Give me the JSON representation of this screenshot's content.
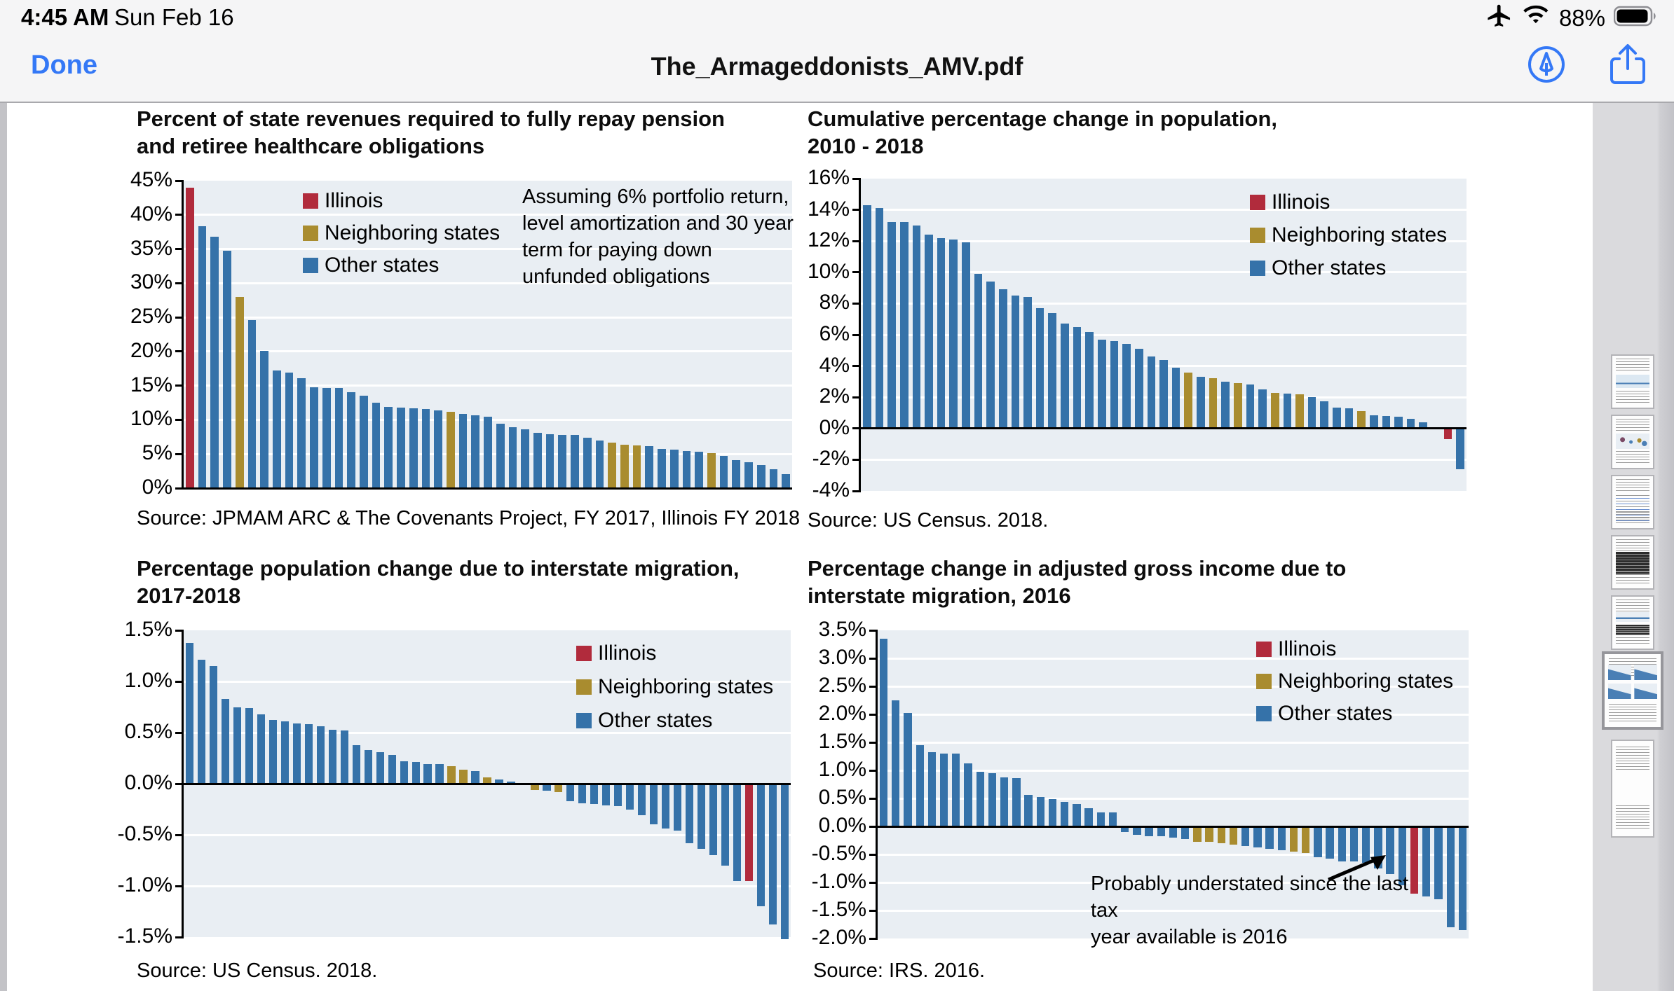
{
  "status": {
    "time": "4:45 AM",
    "date": "Sun Feb 16",
    "battery_percent": "88%",
    "icons": [
      "airplane-mode",
      "wifi",
      "battery"
    ]
  },
  "toolbar": {
    "done_label": "Done",
    "document_title": "The_Armageddonists_AMV.pdf",
    "icons": [
      "markup",
      "share"
    ],
    "accent_color": "#3478f6"
  },
  "colors": {
    "illinois": "#b12b3c",
    "neighboring": "#a98c2f",
    "other": "#3572a9",
    "plot_bg": "#e9eef3",
    "gridline": "#ffffff"
  },
  "legend": {
    "il": "Illinois",
    "nb": "Neighboring states",
    "ot": "Other states"
  },
  "chart_data": [
    {
      "type": "bar",
      "title": "Percent of state revenues required to fully repay pension\nand retiree healthcare obligations",
      "annotation": "Assuming 6% portfolio return,\nlevel amortization and 30 year\nterm for paying down\nunfunded obligations",
      "source": "Source: JPMAM ARC & The Covenants Project, FY 2017, Illinois FY 2018",
      "ylim": [
        0,
        45
      ],
      "ytick_step": 5,
      "tick_decimals": 0,
      "tick_suffix": "%",
      "grid": true,
      "legend_position": "top-center-left",
      "values": [
        44,
        38.3,
        36.8,
        34.8,
        28,
        24.6,
        20.1,
        17.2,
        16.9,
        16.1,
        14.8,
        14.7,
        14.7,
        14.0,
        13.5,
        12.5,
        11.9,
        11.8,
        11.7,
        11.6,
        11.4,
        11.2,
        10.9,
        10.7,
        10.5,
        9.4,
        8.9,
        8.6,
        8.1,
        7.9,
        7.8,
        7.8,
        7.4,
        7.0,
        6.7,
        6.4,
        6.3,
        6.1,
        5.7,
        5.6,
        5.4,
        5.3,
        5.1,
        4.7,
        4.1,
        3.8,
        3.4,
        2.8,
        2.1
      ],
      "types": [
        "il",
        "ot",
        "ot",
        "ot",
        "nb",
        "ot",
        "ot",
        "ot",
        "ot",
        "ot",
        "ot",
        "ot",
        "ot",
        "ot",
        "ot",
        "ot",
        "ot",
        "ot",
        "ot",
        "ot",
        "ot",
        "nb",
        "ot",
        "ot",
        "ot",
        "ot",
        "ot",
        "ot",
        "ot",
        "ot",
        "ot",
        "ot",
        "ot",
        "ot",
        "nb",
        "nb",
        "nb",
        "ot",
        "ot",
        "ot",
        "ot",
        "ot",
        "nb",
        "ot",
        "ot",
        "ot",
        "ot",
        "ot",
        "ot"
      ]
    },
    {
      "type": "bar",
      "title": "Cumulative percentage change in population,\n2010 - 2018",
      "annotation": "",
      "source": "Source: US Census. 2018.",
      "ylim": [
        -4,
        16
      ],
      "ytick_step": 2,
      "tick_decimals": 0,
      "tick_suffix": "%",
      "grid": true,
      "legend_position": "top-right",
      "values": [
        14.3,
        14.1,
        13.2,
        13.2,
        13.0,
        12.4,
        12.2,
        12.1,
        11.9,
        9.9,
        9.4,
        8.9,
        8.5,
        8.4,
        7.7,
        7.4,
        6.7,
        6.5,
        6.2,
        5.7,
        5.6,
        5.4,
        5.1,
        4.6,
        4.4,
        3.9,
        3.6,
        3.3,
        3.2,
        3.0,
        2.9,
        2.8,
        2.5,
        2.3,
        2.25,
        2.2,
        2.0,
        1.75,
        1.35,
        1.3,
        1.1,
        0.85,
        0.8,
        0.75,
        0.6,
        0.4,
        0.1,
        -0.7,
        -2.6
      ],
      "types": [
        "ot",
        "ot",
        "ot",
        "ot",
        "ot",
        "ot",
        "ot",
        "ot",
        "ot",
        "ot",
        "ot",
        "ot",
        "ot",
        "ot",
        "ot",
        "ot",
        "ot",
        "ot",
        "ot",
        "ot",
        "ot",
        "ot",
        "ot",
        "ot",
        "ot",
        "ot",
        "nb",
        "ot",
        "nb",
        "ot",
        "nb",
        "ot",
        "ot",
        "nb",
        "ot",
        "nb",
        "ot",
        "ot",
        "ot",
        "ot",
        "nb",
        "ot",
        "ot",
        "ot",
        "ot",
        "ot",
        "ot",
        "il",
        "ot"
      ]
    },
    {
      "type": "bar",
      "title": "Percentage population change due to interstate migration,\n2017-2018",
      "annotation": "",
      "source": "Source: US Census. 2018.",
      "ylim": [
        -1.5,
        1.5
      ],
      "ytick_step": 0.5,
      "tick_decimals": 1,
      "tick_suffix": "%",
      "grid": true,
      "legend_position": "top-right",
      "values": [
        1.38,
        1.21,
        1.15,
        0.83,
        0.75,
        0.74,
        0.68,
        0.62,
        0.61,
        0.59,
        0.58,
        0.56,
        0.53,
        0.52,
        0.38,
        0.33,
        0.31,
        0.28,
        0.22,
        0.21,
        0.19,
        0.19,
        0.17,
        0.14,
        0.12,
        0.06,
        0.04,
        0.02,
        0.01,
        -0.06,
        -0.07,
        -0.08,
        -0.17,
        -0.19,
        -0.2,
        -0.21,
        -0.22,
        -0.25,
        -0.31,
        -0.4,
        -0.44,
        -0.46,
        -0.58,
        -0.64,
        -0.7,
        -0.8,
        -0.95,
        -0.95,
        -1.2,
        -1.38,
        -1.52
      ],
      "types": [
        "ot",
        "ot",
        "ot",
        "ot",
        "ot",
        "ot",
        "ot",
        "ot",
        "ot",
        "ot",
        "ot",
        "ot",
        "ot",
        "ot",
        "ot",
        "ot",
        "ot",
        "ot",
        "ot",
        "ot",
        "ot",
        "ot",
        "nb",
        "nb",
        "ot",
        "nb",
        "ot",
        "ot",
        "nb",
        "nb",
        "ot",
        "nb",
        "ot",
        "ot",
        "ot",
        "ot",
        "ot",
        "ot",
        "ot",
        "ot",
        "ot",
        "ot",
        "ot",
        "ot",
        "ot",
        "ot",
        "ot",
        "il",
        "ot",
        "ot",
        "ot"
      ]
    },
    {
      "type": "bar",
      "title": "Percentage change in adjusted gross income due to\ninterstate migration, 2016",
      "annotation": "Probably understated since the last tax\nyear available is 2016",
      "source": "Source: IRS. 2016.",
      "ylim": [
        -2.0,
        3.5
      ],
      "ytick_step": 0.5,
      "tick_decimals": 1,
      "tick_suffix": "%",
      "grid": true,
      "legend_position": "top-right",
      "values": [
        3.35,
        2.25,
        2.03,
        1.45,
        1.32,
        1.3,
        1.3,
        1.13,
        0.98,
        0.95,
        0.87,
        0.86,
        0.56,
        0.52,
        0.49,
        0.44,
        0.4,
        0.33,
        0.25,
        0.25,
        -0.1,
        -0.15,
        -0.17,
        -0.18,
        -0.2,
        -0.22,
        -0.27,
        -0.28,
        -0.3,
        -0.32,
        -0.35,
        -0.38,
        -0.4,
        -0.42,
        -0.45,
        -0.48,
        -0.55,
        -0.57,
        -0.62,
        -0.63,
        -0.65,
        -0.75,
        -0.85,
        -1.05,
        -1.2,
        -1.25,
        -1.3,
        -1.8,
        -1.85
      ],
      "types": [
        "ot",
        "ot",
        "ot",
        "ot",
        "ot",
        "ot",
        "ot",
        "ot",
        "ot",
        "ot",
        "ot",
        "ot",
        "ot",
        "ot",
        "ot",
        "ot",
        "ot",
        "ot",
        "ot",
        "ot",
        "ot",
        "ot",
        "ot",
        "ot",
        "ot",
        "ot",
        "nb",
        "nb",
        "nb",
        "nb",
        "ot",
        "ot",
        "ot",
        "ot",
        "nb",
        "nb",
        "ot",
        "ot",
        "ot",
        "ot",
        "ot",
        "ot",
        "ot",
        "ot",
        "il",
        "ot",
        "ot",
        "ot",
        "ot"
      ]
    }
  ],
  "sidebar": {
    "thumbnails": [
      {
        "kind": "line-chart-page",
        "active": false
      },
      {
        "kind": "scatter-chart-page",
        "active": false
      },
      {
        "kind": "text-links-page",
        "active": false
      },
      {
        "kind": "dark-table-page",
        "active": false
      },
      {
        "kind": "mini-charts-page",
        "active": false
      },
      {
        "kind": "bar-charts-page-current",
        "active": true
      },
      {
        "kind": "text-page",
        "active": false
      }
    ]
  }
}
